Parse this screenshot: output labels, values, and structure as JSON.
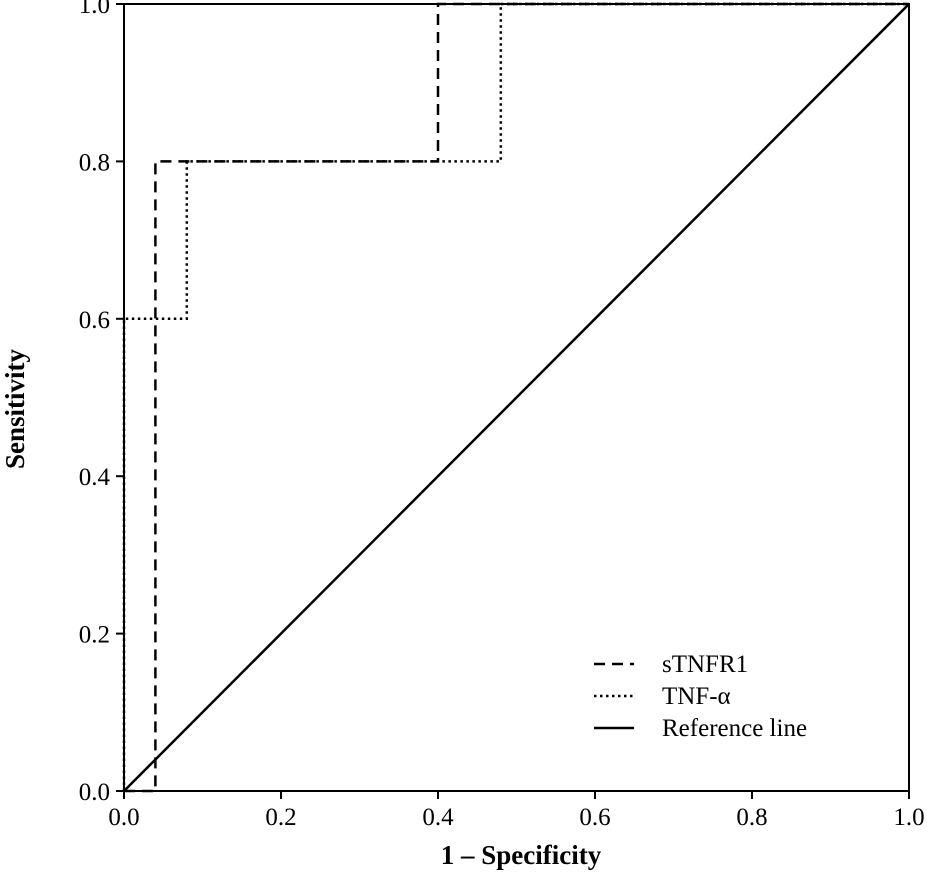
{
  "chart_data": {
    "type": "line",
    "title": "",
    "xlabel": "1 – Specificity",
    "ylabel": "Sensitivity",
    "xlim": [
      0.0,
      1.0
    ],
    "ylim": [
      0.0,
      1.0
    ],
    "x_ticks": [
      "0.0",
      "0.2",
      "0.4",
      "0.6",
      "0.8",
      "1.0"
    ],
    "y_ticks": [
      "0.0",
      "0.2",
      "0.4",
      "0.6",
      "0.8",
      "1.0"
    ],
    "grid": false,
    "legend_position": "bottom-right",
    "series": [
      {
        "name": "sTNFR1",
        "style": "dashed",
        "color": "#000000",
        "points": [
          [
            0.0,
            0.0
          ],
          [
            0.04,
            0.0
          ],
          [
            0.04,
            0.8
          ],
          [
            0.4,
            0.8
          ],
          [
            0.4,
            1.0
          ],
          [
            1.0,
            1.0
          ]
        ]
      },
      {
        "name": "TNF-α",
        "style": "dotted",
        "color": "#000000",
        "points": [
          [
            0.0,
            0.0
          ],
          [
            0.0,
            0.6
          ],
          [
            0.08,
            0.6
          ],
          [
            0.08,
            0.8
          ],
          [
            0.48,
            0.8
          ],
          [
            0.48,
            1.0
          ],
          [
            1.0,
            1.0
          ]
        ]
      },
      {
        "name": "Reference line",
        "style": "solid",
        "color": "#000000",
        "points": [
          [
            0.0,
            0.0
          ],
          [
            1.0,
            1.0
          ]
        ]
      }
    ]
  }
}
